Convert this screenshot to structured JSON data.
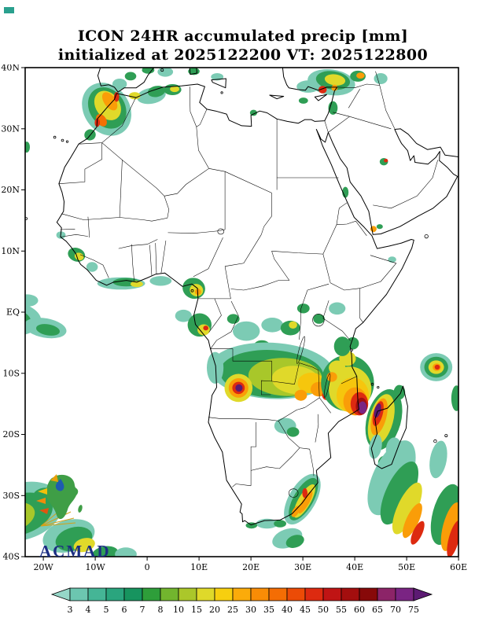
{
  "title": {
    "line1": "ICON 24HR accumulated precip [mm]",
    "line2": "initialized at 2025122200 VT: 2025122800"
  },
  "axes": {
    "lat_ticks": [
      {
        "label": "40N",
        "lat": 40
      },
      {
        "label": "30N",
        "lat": 30
      },
      {
        "label": "20N",
        "lat": 20
      },
      {
        "label": "10N",
        "lat": 10
      },
      {
        "label": "EQ",
        "lat": 0
      },
      {
        "label": "10S",
        "lat": -10
      },
      {
        "label": "20S",
        "lat": -20
      },
      {
        "label": "30S",
        "lat": -30
      },
      {
        "label": "40S",
        "lat": -40
      }
    ],
    "lon_ticks": [
      {
        "label": "20W",
        "lon": -20
      },
      {
        "label": "10W",
        "lon": -10
      },
      {
        "label": "0",
        "lon": 0
      },
      {
        "label": "10E",
        "lon": 10
      },
      {
        "label": "20E",
        "lon": 20
      },
      {
        "label": "30E",
        "lon": 30
      },
      {
        "label": "40E",
        "lon": 40
      },
      {
        "label": "50E",
        "lon": 50
      },
      {
        "label": "60E",
        "lon": 60
      }
    ]
  },
  "colorbar": {
    "labels": [
      "3",
      "4",
      "5",
      "6",
      "7",
      "8",
      "10",
      "15",
      "20",
      "25",
      "30",
      "35",
      "40",
      "45",
      "50",
      "55",
      "60",
      "65",
      "70",
      "75"
    ],
    "colors": [
      "#96d7c8",
      "#6cc6b0",
      "#45b596",
      "#2aa57e",
      "#17945f",
      "#2e9e3a",
      "#72b52e",
      "#abc72a",
      "#dfd92a",
      "#f7cf0f",
      "#fbab0a",
      "#f98c06",
      "#f46d04",
      "#ec4b06",
      "#dd2a10",
      "#c01414",
      "#a30e0e",
      "#870909",
      "#8c2468",
      "#7a2483",
      "#5c1a73"
    ]
  },
  "logo": {
    "text": "ACMAD"
  },
  "precip_palette": {
    "t": "#7ccbb4",
    "g": "#2f9e55",
    "yg": "#a8c72a",
    "y": "#e0d92a",
    "gd": "#f6c60d",
    "o": "#fa9d08",
    "do": "#f47004",
    "r": "#dd2a10",
    "dr": "#a30e0e",
    "p": "#7a2483",
    "dp": "#5c1a73"
  },
  "precip_cells": [
    [
      -7.8,
      33.2,
      4.4,
      4.6,
      -35,
      "t"
    ],
    [
      -7.7,
      33.4,
      3.4,
      3.6,
      -35,
      "g"
    ],
    [
      -7.6,
      33.8,
      2.3,
      2.6,
      -35,
      "y"
    ],
    [
      -7.2,
      34.5,
      1.1,
      1.7,
      -35,
      "o"
    ],
    [
      -8.8,
      31.4,
      0.9,
      1.1,
      -35,
      "do"
    ],
    [
      -5.9,
      35.2,
      0.5,
      0.8,
      0,
      "r"
    ],
    [
      -9.6,
      31.0,
      0.5,
      0.7,
      0,
      "r"
    ],
    [
      -11.0,
      29.0,
      1.1,
      0.9,
      -30,
      "g"
    ],
    [
      0.8,
      35.4,
      2.8,
      1.3,
      -10,
      "t"
    ],
    [
      1.8,
      36.1,
      1.7,
      0.9,
      -10,
      "g"
    ],
    [
      4.9,
      36.4,
      1.7,
      0.9,
      0,
      "g"
    ],
    [
      5.3,
      36.5,
      0.9,
      0.5,
      0,
      "y"
    ],
    [
      -2.4,
      35.4,
      1.1,
      0.6,
      0,
      "y"
    ],
    [
      -5.3,
      37.3,
      1.4,
      0.9,
      0,
      "t"
    ],
    [
      -3.2,
      38.6,
      1.1,
      0.7,
      0,
      "g"
    ],
    [
      0.2,
      39.6,
      1.2,
      0.6,
      0,
      "g"
    ],
    [
      3.5,
      39.3,
      1.5,
      0.8,
      0,
      "t"
    ],
    [
      9.0,
      39.4,
      1.1,
      0.6,
      0,
      "g"
    ],
    [
      13.5,
      38.5,
      1.2,
      0.6,
      0,
      "t"
    ],
    [
      20.5,
      32.6,
      0.7,
      0.5,
      0,
      "g"
    ],
    [
      31.0,
      36.9,
      2.2,
      1.0,
      0,
      "t"
    ],
    [
      35.5,
      37.6,
      4.6,
      2.1,
      8,
      "t"
    ],
    [
      35.8,
      37.9,
      3.3,
      1.5,
      8,
      "g"
    ],
    [
      36.2,
      38.0,
      2.0,
      0.9,
      8,
      "y"
    ],
    [
      33.8,
      36.4,
      0.8,
      0.6,
      0,
      "r"
    ],
    [
      36.1,
      36.7,
      0.6,
      0.5,
      0,
      "o"
    ],
    [
      40.6,
      38.6,
      1.5,
      0.9,
      0,
      "g"
    ],
    [
      41.1,
      38.7,
      0.8,
      0.5,
      0,
      "o"
    ],
    [
      45.0,
      38.2,
      1.3,
      0.9,
      0,
      "t"
    ],
    [
      30.1,
      34.6,
      0.9,
      0.5,
      0,
      "g"
    ],
    [
      35.8,
      33.4,
      0.9,
      1.1,
      0,
      "g"
    ],
    [
      38.2,
      19.6,
      0.6,
      0.9,
      0,
      "g"
    ],
    [
      45.6,
      24.6,
      0.8,
      0.6,
      0,
      "g"
    ],
    [
      46.0,
      24.8,
      0.4,
      0.3,
      0,
      "r"
    ],
    [
      43.6,
      13.6,
      0.6,
      0.5,
      0,
      "o"
    ],
    [
      44.8,
      14.0,
      0.6,
      0.4,
      0,
      "g"
    ],
    [
      47.2,
      8.6,
      0.8,
      0.5,
      0,
      "t"
    ],
    [
      -13.6,
      9.4,
      1.7,
      1.1,
      20,
      "g"
    ],
    [
      -13.1,
      9.1,
      0.9,
      0.6,
      20,
      "y"
    ],
    [
      -16.6,
      12.6,
      0.9,
      0.6,
      0,
      "t"
    ],
    [
      -10.6,
      7.4,
      1.1,
      0.8,
      0,
      "t"
    ],
    [
      -5.0,
      4.7,
      4.6,
      1.0,
      0,
      "t"
    ],
    [
      -4.0,
      4.9,
      2.6,
      0.7,
      0,
      "g"
    ],
    [
      -2.0,
      4.6,
      1.2,
      0.5,
      0,
      "y"
    ],
    [
      2.6,
      5.1,
      2.1,
      0.8,
      0,
      "t"
    ],
    [
      9.0,
      3.9,
      2.2,
      1.7,
      20,
      "g"
    ],
    [
      9.5,
      3.6,
      1.3,
      1.0,
      20,
      "y"
    ],
    [
      9.8,
      3.3,
      0.6,
      0.5,
      0,
      "o"
    ],
    [
      -27.0,
      -1.0,
      6.6,
      2.9,
      5,
      "t"
    ],
    [
      -27.5,
      -1.2,
      5.1,
      2.1,
      5,
      "g"
    ],
    [
      -28.5,
      -0.9,
      3.1,
      1.3,
      5,
      "yg"
    ],
    [
      -29.1,
      -0.6,
      1.8,
      0.8,
      5,
      "y"
    ],
    [
      -19.6,
      -2.6,
      4.1,
      1.6,
      10,
      "t"
    ],
    [
      -19.1,
      -2.9,
      2.3,
      0.9,
      10,
      "g"
    ],
    [
      -23.1,
      1.9,
      2.1,
      1.0,
      0,
      "t"
    ],
    [
      7.0,
      -0.6,
      1.6,
      1.0,
      0,
      "t"
    ],
    [
      10.1,
      -2.1,
      2.3,
      1.9,
      0,
      "g"
    ],
    [
      10.9,
      -2.9,
      1.2,
      0.9,
      0,
      "y"
    ],
    [
      11.3,
      -2.6,
      0.5,
      0.4,
      0,
      "r"
    ],
    [
      19.1,
      -3.1,
      2.6,
      1.6,
      0,
      "t"
    ],
    [
      24.1,
      -2.1,
      2.1,
      1.2,
      0,
      "t"
    ],
    [
      27.6,
      -2.6,
      1.9,
      1.2,
      0,
      "g"
    ],
    [
      28.1,
      -2.1,
      0.8,
      0.6,
      0,
      "y"
    ],
    [
      16.6,
      -1.1,
      1.2,
      0.8,
      0,
      "g"
    ],
    [
      22.1,
      -5.6,
      1.6,
      1.0,
      0,
      "g"
    ],
    [
      36.6,
      0.6,
      1.6,
      1.0,
      0,
      "t"
    ],
    [
      33.1,
      -1.1,
      1.1,
      0.8,
      0,
      "g"
    ],
    [
      30.1,
      0.6,
      1.2,
      0.8,
      0,
      "g"
    ],
    [
      24.0,
      -9.6,
      12.0,
      4.6,
      3,
      "t"
    ],
    [
      24.0,
      -10.1,
      10.0,
      3.9,
      3,
      "g"
    ],
    [
      26.6,
      -10.6,
      7.1,
      3.1,
      3,
      "yg"
    ],
    [
      28.6,
      -11.1,
      4.6,
      2.3,
      5,
      "y"
    ],
    [
      31.6,
      -11.6,
      2.6,
      1.7,
      0,
      "gd"
    ],
    [
      33.1,
      -12.6,
      1.6,
      1.2,
      0,
      "o"
    ],
    [
      29.6,
      -13.6,
      1.2,
      0.9,
      0,
      "o"
    ],
    [
      34.6,
      -13.6,
      0.9,
      0.8,
      0,
      "r"
    ],
    [
      17.6,
      -12.4,
      2.7,
      2.3,
      0,
      "y"
    ],
    [
      17.6,
      -12.4,
      1.9,
      1.6,
      0,
      "o"
    ],
    [
      17.6,
      -12.4,
      1.2,
      1.0,
      0,
      "r"
    ],
    [
      17.7,
      -12.4,
      0.7,
      0.6,
      0,
      "dp"
    ],
    [
      13.1,
      -9.1,
      1.6,
      2.6,
      0,
      "t"
    ],
    [
      38.6,
      -11.6,
      5.1,
      4.6,
      0,
      "g"
    ],
    [
      39.1,
      -12.6,
      4.1,
      3.7,
      0,
      "y"
    ],
    [
      39.6,
      -13.6,
      3.1,
      2.9,
      0,
      "gd"
    ],
    [
      40.1,
      -14.6,
      2.3,
      2.3,
      0,
      "o"
    ],
    [
      40.9,
      -15.0,
      1.7,
      1.9,
      0,
      "r"
    ],
    [
      41.3,
      -15.4,
      1.1,
      1.4,
      0,
      "dr"
    ],
    [
      41.5,
      -15.6,
      0.8,
      1.0,
      0,
      "p"
    ],
    [
      36.6,
      -9.1,
      1.6,
      1.2,
      0,
      "y"
    ],
    [
      35.6,
      -10.6,
      1.0,
      0.8,
      0,
      "o"
    ],
    [
      38.6,
      -7.6,
      1.6,
      1.2,
      0,
      "y"
    ],
    [
      37.6,
      -5.6,
      1.6,
      1.6,
      0,
      "g"
    ],
    [
      39.6,
      -5.1,
      1.2,
      1.0,
      0,
      "g"
    ],
    [
      45.6,
      -17.6,
      3.3,
      5.1,
      15,
      "g"
    ],
    [
      45.1,
      -17.6,
      2.3,
      4.3,
      15,
      "y"
    ],
    [
      44.7,
      -17.1,
      1.4,
      3.1,
      15,
      "o"
    ],
    [
      44.5,
      -16.6,
      0.9,
      2.1,
      15,
      "r"
    ],
    [
      44.4,
      -16.1,
      0.6,
      1.2,
      15,
      "dp"
    ],
    [
      47.6,
      -22.6,
      1.6,
      2.1,
      0,
      "t"
    ],
    [
      46.1,
      -24.6,
      1.6,
      1.2,
      0,
      "g"
    ],
    [
      48.6,
      -13.1,
      1.1,
      1.2,
      0,
      "g"
    ],
    [
      44.0,
      -22.0,
      1.2,
      2.0,
      10,
      "t"
    ],
    [
      55.7,
      -9.0,
      3.1,
      2.3,
      0,
      "t"
    ],
    [
      55.7,
      -9.0,
      2.3,
      1.7,
      0,
      "g"
    ],
    [
      55.7,
      -9.0,
      1.5,
      1.1,
      0,
      "y"
    ],
    [
      55.8,
      -9.0,
      0.8,
      0.6,
      0,
      "o"
    ],
    [
      55.9,
      -9.0,
      0.5,
      0.4,
      0,
      "r"
    ],
    [
      59.6,
      -14.1,
      1.0,
      2.1,
      0,
      "g"
    ],
    [
      47.1,
      -27.1,
      3.6,
      6.6,
      25,
      "t"
    ],
    [
      48.6,
      -29.6,
      2.6,
      5.6,
      25,
      "g"
    ],
    [
      50.1,
      -32.1,
      1.9,
      4.6,
      25,
      "y"
    ],
    [
      51.1,
      -34.1,
      1.2,
      3.1,
      25,
      "o"
    ],
    [
      52.1,
      -36.1,
      0.9,
      2.1,
      25,
      "r"
    ],
    [
      57.6,
      -33.1,
      2.6,
      5.1,
      15,
      "g"
    ],
    [
      58.6,
      -35.1,
      1.6,
      4.1,
      15,
      "o"
    ],
    [
      59.1,
      -37.1,
      1.0,
      3.1,
      15,
      "r"
    ],
    [
      56.1,
      -24.1,
      1.6,
      3.1,
      10,
      "t"
    ],
    [
      29.9,
      -30.6,
      2.6,
      4.6,
      30,
      "t"
    ],
    [
      30.1,
      -30.6,
      1.9,
      3.9,
      30,
      "g"
    ],
    [
      30.3,
      -30.9,
      1.2,
      3.1,
      30,
      "y"
    ],
    [
      30.5,
      -31.1,
      0.7,
      2.1,
      30,
      "o"
    ],
    [
      30.4,
      -29.6,
      0.5,
      0.8,
      0,
      "r"
    ],
    [
      28.6,
      -32.6,
      0.6,
      1.0,
      30,
      "o"
    ],
    [
      23.1,
      -34.6,
      2.1,
      0.8,
      0,
      "t"
    ],
    [
      25.6,
      -34.6,
      1.2,
      0.6,
      0,
      "g"
    ],
    [
      20.1,
      -34.9,
      1.1,
      0.5,
      0,
      "g"
    ],
    [
      26.6,
      -18.6,
      2.1,
      1.3,
      0,
      "t"
    ],
    [
      28.1,
      -19.6,
      1.2,
      0.8,
      0,
      "g"
    ],
    [
      -24.1,
      -32.6,
      8.1,
      4.6,
      -18,
      "t"
    ],
    [
      -24.6,
      -33.1,
      6.6,
      3.3,
      -18,
      "g"
    ],
    [
      -26.1,
      -33.6,
      4.6,
      2.3,
      -18,
      "yg"
    ],
    [
      -27.6,
      -34.1,
      3.1,
      1.6,
      -18,
      "y"
    ],
    [
      -29.1,
      -34.6,
      1.6,
      0.9,
      -18,
      "gd"
    ],
    [
      -15.1,
      -36.6,
      5.1,
      2.6,
      -15,
      "t"
    ],
    [
      -14.1,
      -37.1,
      3.6,
      1.9,
      -15,
      "g"
    ],
    [
      -12.1,
      -38.1,
      2.1,
      1.1,
      -15,
      "y"
    ],
    [
      -20.1,
      -30.1,
      2.1,
      1.3,
      -20,
      "g"
    ],
    [
      -8.1,
      -39.6,
      2.6,
      1.3,
      -10,
      "g"
    ],
    [
      -4.1,
      -39.6,
      2.1,
      1.1,
      0,
      "t"
    ],
    [
      27.0,
      -37.0,
      3.0,
      1.5,
      -20,
      "t"
    ],
    [
      28.5,
      -37.5,
      1.8,
      1.0,
      -20,
      "g"
    ],
    [
      -23.2,
      27.0,
      0.6,
      0.9,
      0,
      "g"
    ]
  ]
}
